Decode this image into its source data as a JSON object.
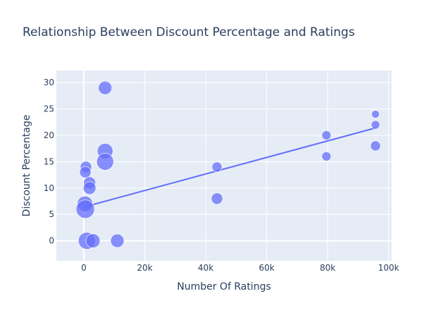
{
  "chart_data": {
    "type": "scatter",
    "title": "Relationship Between Discount Percentage and Ratings",
    "xlabel": "Number Of Ratings",
    "ylabel": "Discount Percentage",
    "xlim": [
      -9000,
      101000
    ],
    "ylim": [
      -3.8,
      32.3
    ],
    "xticks": [
      0,
      20000,
      40000,
      60000,
      80000,
      100000
    ],
    "xtick_labels": [
      "0",
      "20k",
      "40k",
      "60k",
      "80k",
      "100k"
    ],
    "yticks": [
      0,
      5,
      10,
      15,
      20,
      25,
      30
    ],
    "ytick_labels": [
      "0",
      "5",
      "10",
      "15",
      "20",
      "25",
      "30"
    ],
    "grid": true,
    "colors": {
      "marker": "#636efa",
      "trend": "#636efa",
      "plot_bg": "#e5ecf6",
      "grid": "#ffffff",
      "text": "#2a3f5f"
    },
    "points": [
      {
        "x": 7000,
        "y": 29,
        "size": 19
      },
      {
        "x": 7000,
        "y": 17,
        "size": 22
      },
      {
        "x": 7000,
        "y": 15,
        "size": 24
      },
      {
        "x": 700,
        "y": 14,
        "size": 16
      },
      {
        "x": 500,
        "y": 13,
        "size": 16
      },
      {
        "x": 1900,
        "y": 11,
        "size": 17
      },
      {
        "x": 1900,
        "y": 10,
        "size": 18
      },
      {
        "x": 400,
        "y": 7,
        "size": 22
      },
      {
        "x": 500,
        "y": 6,
        "size": 26
      },
      {
        "x": 1000,
        "y": 0,
        "size": 24
      },
      {
        "x": 3000,
        "y": 0,
        "size": 20
      },
      {
        "x": 11000,
        "y": 0,
        "size": 19
      },
      {
        "x": 43700,
        "y": 14,
        "size": 14
      },
      {
        "x": 43700,
        "y": 8,
        "size": 16
      },
      {
        "x": 79600,
        "y": 20,
        "size": 13
      },
      {
        "x": 79600,
        "y": 16,
        "size": 13
      },
      {
        "x": 95700,
        "y": 24,
        "size": 11
      },
      {
        "x": 95700,
        "y": 22,
        "size": 12
      },
      {
        "x": 95700,
        "y": 18,
        "size": 14
      }
    ],
    "trendline": {
      "x": [
        0,
        95700
      ],
      "y": [
        6.4,
        21.4
      ]
    }
  }
}
